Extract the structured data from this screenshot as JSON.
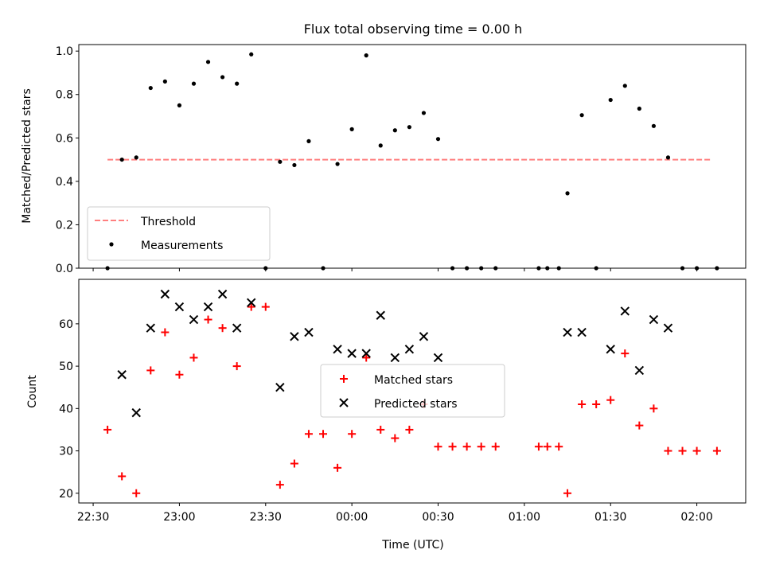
{
  "title": "Flux total observing time = 0.00 h",
  "colors": {
    "threshold": "#ff7f7f",
    "measurement": "#000000",
    "matched": "#ff0000",
    "predicted": "#000000"
  },
  "chart_data": [
    {
      "type": "scatter",
      "ylabel": "Matched/Predicted stars",
      "ylim": [
        0,
        1.03
      ],
      "yticks": [
        0.0,
        0.2,
        0.4,
        0.6,
        0.8,
        1.0
      ],
      "ytick_labels": [
        "0.0",
        "0.2",
        "0.4",
        "0.6",
        "0.8",
        "1.0"
      ],
      "legend_position": "lower-left",
      "threshold": {
        "name": "Threshold",
        "value": 0.5,
        "x_range": [
          "22:35",
          "02:05"
        ]
      },
      "series": [
        {
          "name": "Measurements",
          "x": [
            "22:35",
            "22:40",
            "22:45",
            "22:50",
            "22:55",
            "23:00",
            "23:05",
            "23:10",
            "23:15",
            "23:20",
            "23:25",
            "23:30",
            "23:35",
            "23:40",
            "23:45",
            "23:50",
            "23:55",
            "00:00",
            "00:05",
            "00:10",
            "00:15",
            "00:20",
            "00:25",
            "00:30",
            "00:35",
            "00:40",
            "00:45",
            "00:50",
            "01:05",
            "01:08",
            "01:12",
            "01:15",
            "01:20",
            "01:25",
            "01:30",
            "01:35",
            "01:40",
            "01:45",
            "01:50",
            "01:55",
            "02:00",
            "02:07"
          ],
          "y": [
            0.0,
            0.5,
            0.51,
            0.83,
            0.86,
            0.75,
            0.85,
            0.95,
            0.88,
            0.85,
            0.985,
            0.0,
            0.49,
            0.475,
            0.585,
            0.0,
            0.48,
            0.64,
            0.98,
            0.565,
            0.635,
            0.65,
            0.715,
            0.595,
            0.0,
            0.0,
            0.0,
            0.0,
            0.0,
            0.0,
            0.0,
            0.345,
            0.705,
            0.0,
            0.775,
            0.84,
            0.735,
            0.655,
            0.51,
            0.0,
            0.0,
            0.0
          ]
        }
      ]
    },
    {
      "type": "scatter",
      "xlabel": "Time (UTC)",
      "ylabel": "Count",
      "ylim": [
        17.7,
        70.5
      ],
      "yticks": [
        20,
        30,
        40,
        50,
        60
      ],
      "ytick_labels": [
        "20",
        "30",
        "40",
        "50",
        "60"
      ],
      "xlim": [
        "22:25",
        "02:17"
      ],
      "xticks": [
        "22:30",
        "23:00",
        "23:30",
        "00:00",
        "00:30",
        "01:00",
        "01:30",
        "02:00"
      ],
      "legend_position": "center",
      "series": [
        {
          "name": "Matched stars",
          "marker": "plus",
          "x": [
            "22:35",
            "22:40",
            "22:45",
            "22:50",
            "22:55",
            "23:00",
            "23:05",
            "23:10",
            "23:15",
            "23:20",
            "23:25",
            "23:30",
            "23:35",
            "23:40",
            "23:45",
            "23:50",
            "23:55",
            "00:00",
            "00:05",
            "00:10",
            "00:15",
            "00:20",
            "00:25",
            "00:30",
            "00:35",
            "00:40",
            "00:45",
            "00:50",
            "01:05",
            "01:08",
            "01:12",
            "01:15",
            "01:20",
            "01:25",
            "01:30",
            "01:35",
            "01:40",
            "01:45",
            "01:50",
            "01:55",
            "02:00",
            "02:07"
          ],
          "y": [
            35,
            24,
            20,
            49,
            58,
            48,
            52,
            61,
            59,
            50,
            64,
            64,
            22,
            27,
            34,
            34,
            26,
            34,
            52,
            35,
            33,
            35,
            41,
            31,
            31,
            31,
            31,
            31,
            31,
            31,
            31,
            20,
            41,
            41,
            42,
            53,
            36,
            40,
            30,
            30,
            30,
            30
          ]
        },
        {
          "name": "Predicted stars",
          "marker": "x",
          "x": [
            "22:40",
            "22:45",
            "22:50",
            "22:55",
            "23:00",
            "23:05",
            "23:10",
            "23:15",
            "23:20",
            "23:25",
            "23:35",
            "23:40",
            "23:45",
            "23:55",
            "00:00",
            "00:05",
            "00:10",
            "00:15",
            "00:20",
            "00:25",
            "00:30",
            "01:15",
            "01:20",
            "01:30",
            "01:35",
            "01:40",
            "01:45",
            "01:50"
          ],
          "y": [
            48,
            39,
            59,
            67,
            64,
            61,
            64,
            67,
            59,
            65,
            45,
            57,
            58,
            54,
            53,
            53,
            62,
            52,
            54,
            57,
            52,
            58,
            58,
            54,
            63,
            49,
            61,
            59
          ]
        }
      ]
    }
  ]
}
